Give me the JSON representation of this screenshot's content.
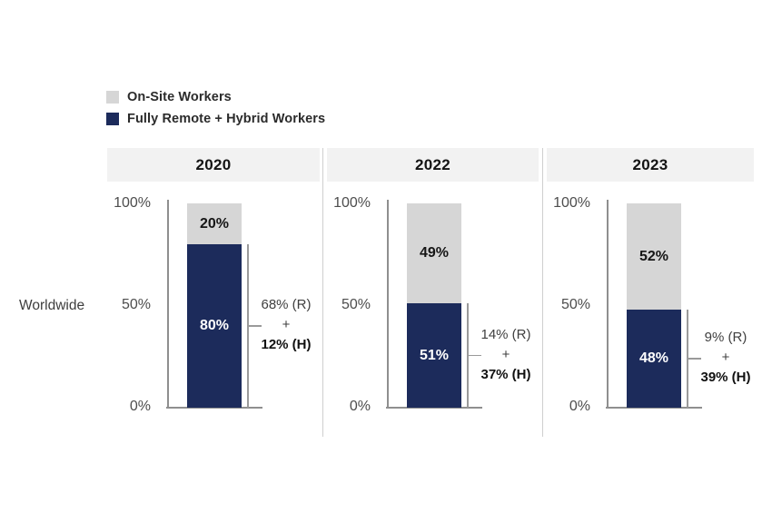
{
  "legend": {
    "items": [
      {
        "name": "onsite",
        "label": "On-Site Workers",
        "color": "#d6d6d6"
      },
      {
        "name": "remote_hybrid",
        "label": "Fully Remote + Hybrid Workers",
        "color": "#1c2b5b"
      }
    ]
  },
  "row_label": "Worldwide",
  "y_axis": {
    "ticks": [
      "100%",
      "50%",
      "0%"
    ]
  },
  "panels": [
    {
      "year": "2020",
      "onsite_pct": "20%",
      "remote_pct": "80%",
      "remote_note": "68% (R)",
      "plus": "+",
      "hybrid_note": "12% (H)"
    },
    {
      "year": "2022",
      "onsite_pct": "49%",
      "remote_pct": "51%",
      "remote_note": "14% (R)",
      "plus": "+",
      "hybrid_note": "37% (H)"
    },
    {
      "year": "2023",
      "onsite_pct": "52%",
      "remote_pct": "48%",
      "remote_note": "9% (R)",
      "plus": "+",
      "hybrid_note": "39% (H)"
    }
  ],
  "colors": {
    "onsite_segment": "#d6d6d6",
    "remote_segment": "#1c2b5b",
    "header_band": "#f2f2f2",
    "axis_line": "#8f8f8f",
    "divider": "#cfcfcf"
  },
  "chart_data": {
    "type": "bar",
    "stacked": true,
    "title": "",
    "row_label": "Worldwide",
    "categories": [
      "2020",
      "2022",
      "2023"
    ],
    "series": [
      {
        "name": "On-Site Workers",
        "color": "#d6d6d6",
        "values": [
          20,
          49,
          52
        ]
      },
      {
        "name": "Fully Remote + Hybrid Workers",
        "color": "#1c2b5b",
        "values": [
          80,
          51,
          48
        ]
      }
    ],
    "annotations": [
      {
        "category": "2020",
        "label": "68% (R) + 12% (H)",
        "remote_pct": 68,
        "hybrid_pct": 12
      },
      {
        "category": "2022",
        "label": "14% (R) + 37% (H)",
        "remote_pct": 14,
        "hybrid_pct": 37
      },
      {
        "category": "2023",
        "label": "9% (R) + 39% (H)",
        "remote_pct": 9,
        "hybrid_pct": 39
      }
    ],
    "xlabel": "",
    "ylabel": "",
    "ylim": [
      0,
      100
    ],
    "y_ticks_pct": [
      0,
      50,
      100
    ],
    "grid": false,
    "legend_position": "top-left"
  }
}
